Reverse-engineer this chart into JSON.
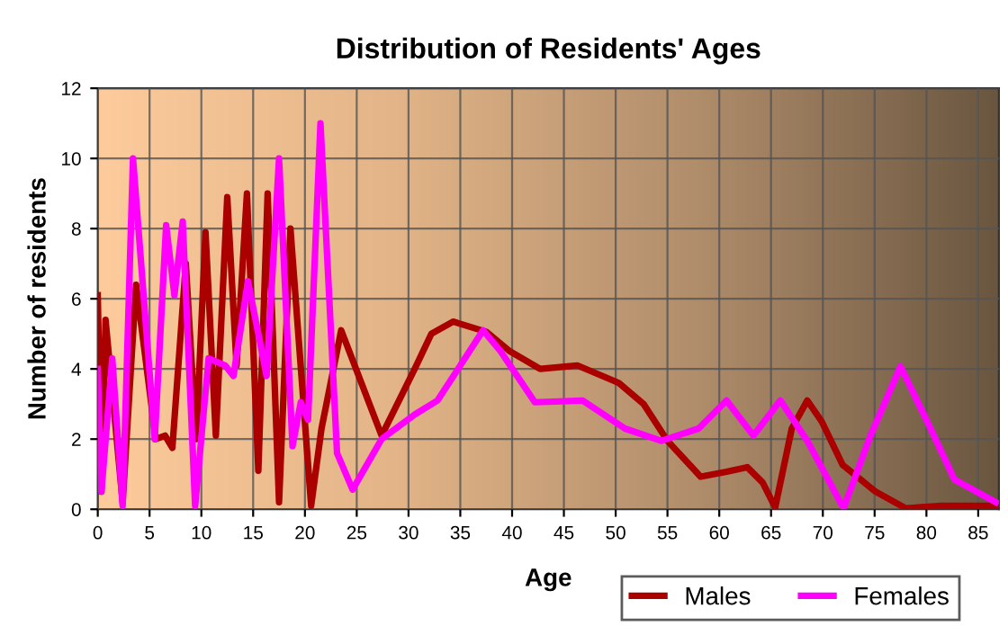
{
  "chart_data": {
    "type": "line",
    "title": "Distribution of Residents' Ages",
    "xlabel": "Age",
    "ylabel": "Number of residents",
    "xlim": [
      0,
      87
    ],
    "xticks": [
      0,
      5,
      10,
      15,
      20,
      25,
      30,
      35,
      40,
      45,
      50,
      55,
      60,
      65,
      70,
      75,
      80,
      85
    ],
    "ylim": [
      0,
      12
    ],
    "yticks": [
      0,
      2,
      4,
      6,
      8,
      10,
      12
    ],
    "grid": true,
    "legend": "bottom right",
    "marker": "none",
    "line_style": "solid",
    "series": [
      {
        "name": "Males",
        "color": "#aa0000",
        "x": [
          0,
          0.35,
          0.75,
          2.4,
          3.7,
          5.6,
          6.5,
          7.2,
          8.5,
          9.5,
          10.4,
          11.4,
          12.5,
          13.4,
          14.4,
          15.5,
          16.4,
          17.5,
          18.6,
          20.6,
          21.6,
          23.5,
          27.4,
          30.6,
          32.2,
          34.3,
          37.5,
          39.8,
          42.7,
          46.3,
          50.3,
          52.7,
          55,
          58.2,
          60.7,
          62.7,
          64.2,
          65.4,
          67,
          68.5,
          69.9,
          71.9,
          75.1,
          78,
          81.5,
          86.7
        ],
        "values": [
          6.1,
          0.5,
          5.4,
          0.2,
          6.4,
          2.0,
          2.1,
          1.75,
          7.0,
          2.0,
          7.9,
          2.1,
          8.9,
          4.1,
          9.0,
          1.1,
          9.0,
          0.2,
          8.0,
          0.1,
          2.3,
          5.1,
          2.1,
          4.0,
          5.0,
          5.35,
          5.06,
          4.5,
          4.0,
          4.1,
          3.6,
          3.0,
          1.95,
          0.93,
          1.07,
          1.2,
          0.76,
          0.05,
          2.3,
          3.1,
          2.5,
          1.27,
          0.5,
          0.03,
          0.1,
          0.1
        ]
      },
      {
        "name": "Females",
        "color": "#ff00ff",
        "x": [
          0,
          0.35,
          1.4,
          2.4,
          3.4,
          5.5,
          6.6,
          7.4,
          8.2,
          9.4,
          10.7,
          12.3,
          13.1,
          14.5,
          16.3,
          17.5,
          18.8,
          19.6,
          20.3,
          21.5,
          23.1,
          24.6,
          27.4,
          30.6,
          32.8,
          37.2,
          38.9,
          42.2,
          46.8,
          50.9,
          54.4,
          58,
          60.7,
          63.3,
          65.9,
          68.5,
          72,
          74.6,
          77.5,
          80.4,
          82.7,
          86.7
        ],
        "values": [
          4.0,
          0.5,
          4.3,
          0.1,
          10.0,
          2.0,
          8.1,
          6.1,
          8.2,
          0.1,
          4.3,
          4.1,
          3.8,
          6.5,
          3.8,
          10.0,
          1.8,
          3.05,
          2.55,
          11.0,
          1.6,
          0.56,
          2.0,
          2.7,
          3.1,
          5.1,
          4.5,
          3.05,
          3.1,
          2.3,
          1.95,
          2.3,
          3.1,
          2.1,
          3.1,
          1.95,
          0.03,
          2.1,
          4.07,
          2.3,
          0.85,
          0.2
        ]
      }
    ]
  }
}
